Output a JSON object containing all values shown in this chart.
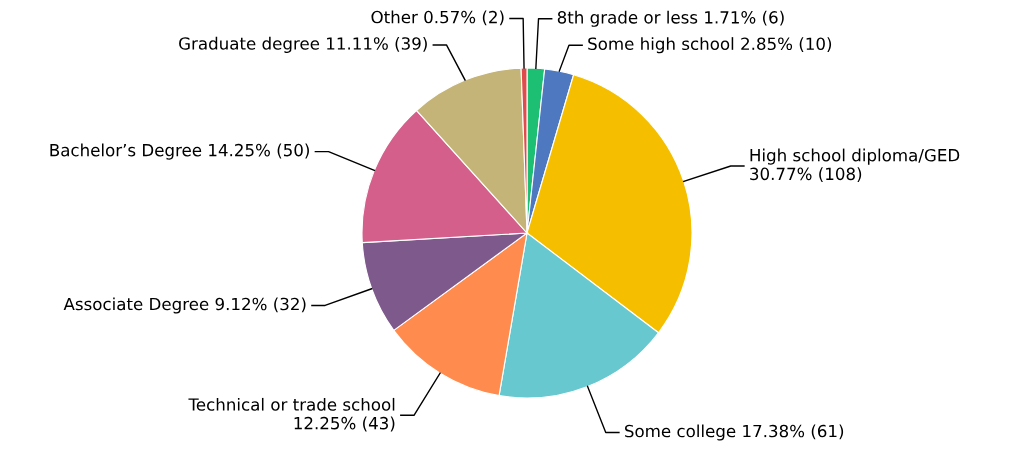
{
  "chart_data": {
    "type": "pie",
    "categories": [
      "8th grade or less",
      "Some high school",
      "High school diploma/GED",
      "Some college",
      "Technical or trade school",
      "Associate Degree",
      "Bachelor’s Degree",
      "Graduate degree",
      "Other"
    ],
    "values": [
      6,
      10,
      108,
      61,
      43,
      32,
      50,
      39,
      2
    ],
    "value_labels": [
      "1.71% (6)",
      "2.85% (10)",
      "30.77% (108)",
      "17.38% (61)",
      "12.25% (43)",
      "9.12% (32)",
      "14.25% (50)",
      "11.11% (39)",
      "0.57% (2)"
    ],
    "colors": [
      "#1dbf73",
      "#4e79c0",
      "#f5bf00",
      "#68c8d0",
      "#ff8c4e",
      "#7e5a8c",
      "#d45f8a",
      "#c4b477",
      "#e04b4b"
    ]
  }
}
